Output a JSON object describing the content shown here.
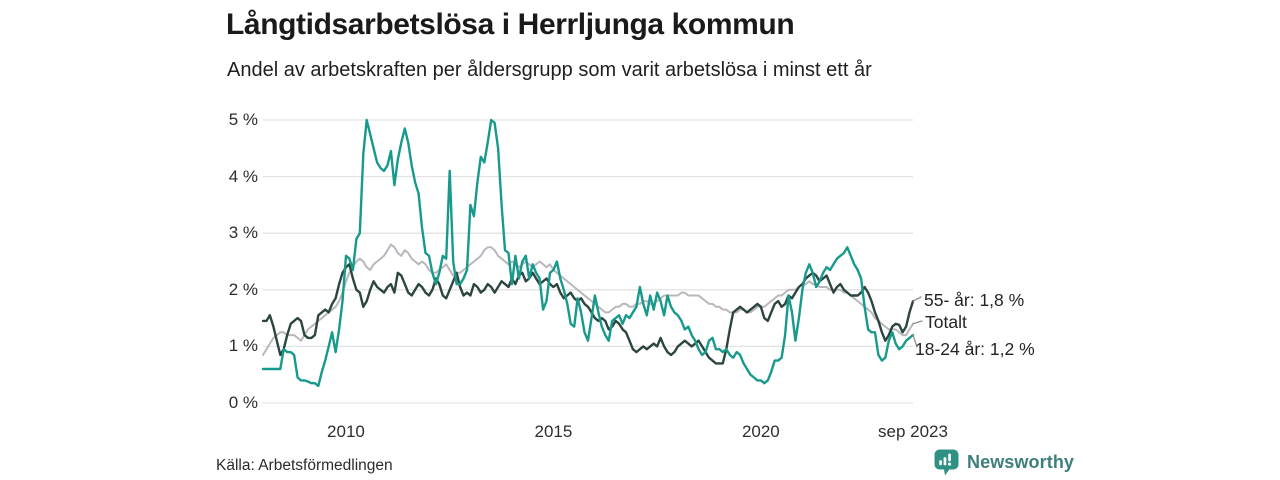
{
  "header": {
    "title": "Långtidsarbetslösa i Herrljunga kommun",
    "subtitle": "Andel av arbetskraften per åldersgrupp som varit arbetslösa i minst ett år"
  },
  "footer": {
    "source": "Källa: Arbetsförmedlingen",
    "brand_name": "Newsworthy"
  },
  "colors": {
    "youth_line": "#179a8c",
    "senior_line": "#2c463f",
    "total_line": "#b9b7bd",
    "grid": "#e3e3e3",
    "leader": "#8f8f8f",
    "brand_teal": "#2f9184",
    "text_dark": "#1a1a1a"
  },
  "chart_data": {
    "type": "line",
    "title": "Långtidsarbetslösa i Herrljunga kommun",
    "subtitle": "Andel av arbetskraften per åldersgrupp som varit arbetslösa i minst ett år",
    "unit": "%",
    "frequency": "monthly",
    "x_start": "2008-01",
    "x_end": "2023-09",
    "ylim": [
      0,
      5
    ],
    "grid": true,
    "legend_position": "end-of-line-labels-right",
    "y_ticks": [
      "0 %",
      "1 %",
      "2 %",
      "3 %",
      "4 %",
      "5 %"
    ],
    "x_ticks": [
      {
        "label": "2010",
        "month_index": 24
      },
      {
        "label": "2015",
        "month_index": 84
      },
      {
        "label": "2020",
        "month_index": 144
      },
      {
        "label": "sep 2023",
        "month_index": 188
      }
    ],
    "series": [
      {
        "name": "Totalt",
        "end_label": "Totalt",
        "color": "#b9b7bd",
        "width": 2,
        "values": [
          0.85,
          0.95,
          1.05,
          1.15,
          1.2,
          1.25,
          1.25,
          1.2,
          1.2,
          1.2,
          1.15,
          1.1,
          1.2,
          1.3,
          1.35,
          1.4,
          1.45,
          1.5,
          1.55,
          1.6,
          1.65,
          1.7,
          1.8,
          1.95,
          2.15,
          2.3,
          2.4,
          2.5,
          2.55,
          2.5,
          2.4,
          2.35,
          2.45,
          2.5,
          2.55,
          2.6,
          2.7,
          2.8,
          2.75,
          2.65,
          2.6,
          2.7,
          2.65,
          2.55,
          2.5,
          2.45,
          2.5,
          2.45,
          2.35,
          2.3,
          2.3,
          2.35,
          2.4,
          2.45,
          2.35,
          2.25,
          2.3,
          2.3,
          2.35,
          2.4,
          2.45,
          2.5,
          2.55,
          2.6,
          2.7,
          2.75,
          2.75,
          2.7,
          2.6,
          2.55,
          2.5,
          2.45,
          2.5,
          2.45,
          2.4,
          2.45,
          2.5,
          2.45,
          2.4,
          2.45,
          2.5,
          2.45,
          2.4,
          2.45,
          2.35,
          2.3,
          2.25,
          2.2,
          2.15,
          2.1,
          2.05,
          2.0,
          1.95,
          1.9,
          1.85,
          1.8,
          1.75,
          1.7,
          1.65,
          1.6,
          1.6,
          1.65,
          1.7,
          1.7,
          1.75,
          1.75,
          1.7,
          1.7,
          1.75,
          1.75,
          1.8,
          1.8,
          1.75,
          1.75,
          1.8,
          1.85,
          1.9,
          1.9,
          1.9,
          1.9,
          1.9,
          1.95,
          1.95,
          1.9,
          1.9,
          1.9,
          1.9,
          1.85,
          1.8,
          1.75,
          1.75,
          1.7,
          1.7,
          1.65,
          1.65,
          1.6,
          1.6,
          1.6,
          1.65,
          1.65,
          1.6,
          1.6,
          1.65,
          1.7,
          1.7,
          1.7,
          1.75,
          1.8,
          1.85,
          1.9,
          1.9,
          1.95,
          2.0,
          2.0,
          2.0,
          2.05,
          2.1,
          2.1,
          2.15,
          2.1,
          2.1,
          2.05,
          2.05,
          2.05,
          2.0,
          2.0,
          2.0,
          2.0,
          1.95,
          1.95,
          1.9,
          1.85,
          1.8,
          1.75,
          1.7,
          1.65,
          1.6,
          1.5,
          1.45,
          1.4,
          1.35,
          1.3,
          1.3,
          1.3,
          1.25,
          1.2,
          1.2,
          1.3,
          1.4
        ]
      },
      {
        "name": "55- år",
        "end_label": "55- år: 1,8 %",
        "color": "#2c463f",
        "width": 2.4,
        "values": [
          1.45,
          1.45,
          1.55,
          1.35,
          1.1,
          0.85,
          0.95,
          1.2,
          1.4,
          1.45,
          1.5,
          1.45,
          1.2,
          1.15,
          1.15,
          1.2,
          1.55,
          1.6,
          1.65,
          1.6,
          1.75,
          1.85,
          2.1,
          2.3,
          2.4,
          2.45,
          2.2,
          2.0,
          1.95,
          1.7,
          1.8,
          2.0,
          2.15,
          2.05,
          2.0,
          1.95,
          2.05,
          2.1,
          1.95,
          2.3,
          2.25,
          2.1,
          1.95,
          1.9,
          2.0,
          2.1,
          2.05,
          1.95,
          1.9,
          2.0,
          2.2,
          2.1,
          1.9,
          1.85,
          2.0,
          2.15,
          2.3,
          2.05,
          1.9,
          1.95,
          1.9,
          2.1,
          2.05,
          1.95,
          2.0,
          2.1,
          2.05,
          1.95,
          2.05,
          2.15,
          2.1,
          2.05,
          2.2,
          2.1,
          2.25,
          2.3,
          2.15,
          2.2,
          2.3,
          2.2,
          2.1,
          2.15,
          2.2,
          2.1,
          2.05,
          2.1,
          1.95,
          1.85,
          1.9,
          1.95,
          1.85,
          1.8,
          1.85,
          1.75,
          1.7,
          1.6,
          1.5,
          1.45,
          1.5,
          1.45,
          1.3,
          1.35,
          1.45,
          1.4,
          1.3,
          1.25,
          1.1,
          0.95,
          0.9,
          0.95,
          1.0,
          0.95,
          1.0,
          1.05,
          1.0,
          1.15,
          1.0,
          0.9,
          0.85,
          0.9,
          1.0,
          1.05,
          1.1,
          1.05,
          1.0,
          1.05,
          1.1,
          1.0,
          0.9,
          0.8,
          0.75,
          0.7,
          0.7,
          0.7,
          0.95,
          1.3,
          1.6,
          1.65,
          1.7,
          1.65,
          1.6,
          1.65,
          1.7,
          1.75,
          1.7,
          1.5,
          1.45,
          1.6,
          1.75,
          1.8,
          1.7,
          1.75,
          1.9,
          1.85,
          1.95,
          2.05,
          2.1,
          2.2,
          2.25,
          2.3,
          2.25,
          2.15,
          2.2,
          2.25,
          2.1,
          1.95,
          2.05,
          2.1,
          2.0,
          1.95,
          1.9,
          1.9,
          1.9,
          1.95,
          2.05,
          1.95,
          1.8,
          1.6,
          1.45,
          1.25,
          1.1,
          1.2,
          1.35,
          1.4,
          1.38,
          1.25,
          1.35,
          1.6,
          1.8
        ]
      },
      {
        "name": "18-24 år",
        "end_label": "18-24 år: 1,2 %",
        "color": "#179a8c",
        "width": 2.4,
        "values": [
          0.6,
          0.6,
          0.6,
          0.6,
          0.6,
          0.6,
          0.95,
          0.9,
          0.9,
          0.85,
          0.45,
          0.4,
          0.4,
          0.38,
          0.35,
          0.35,
          0.3,
          0.55,
          0.75,
          1.0,
          1.25,
          0.9,
          1.3,
          1.8,
          2.6,
          2.55,
          2.35,
          2.9,
          3.0,
          4.4,
          5.0,
          4.75,
          4.5,
          4.25,
          4.15,
          4.1,
          4.2,
          4.45,
          3.85,
          4.3,
          4.6,
          4.85,
          4.6,
          4.2,
          3.9,
          3.7,
          3.1,
          2.65,
          2.6,
          2.3,
          2.1,
          2.3,
          2.6,
          2.55,
          4.1,
          2.5,
          2.1,
          2.1,
          2.2,
          2.35,
          3.5,
          3.3,
          3.9,
          4.35,
          4.25,
          4.6,
          5.0,
          4.95,
          4.5,
          3.5,
          2.7,
          2.65,
          2.1,
          2.6,
          2.2,
          2.5,
          2.6,
          2.2,
          2.45,
          2.3,
          2.2,
          1.65,
          1.8,
          2.3,
          2.35,
          2.5,
          2.2,
          2.0,
          1.75,
          1.4,
          1.35,
          1.85,
          1.6,
          1.25,
          1.1,
          1.5,
          1.9,
          1.6,
          1.35,
          1.2,
          1.1,
          1.45,
          1.5,
          1.55,
          1.4,
          1.55,
          1.5,
          1.6,
          1.7,
          2.05,
          1.75,
          1.55,
          1.9,
          1.65,
          1.95,
          1.8,
          1.55,
          1.9,
          1.7,
          1.6,
          1.55,
          1.45,
          1.3,
          1.35,
          1.2,
          1.1,
          0.95,
          0.85,
          0.9,
          1.1,
          1.15,
          0.95,
          0.95,
          0.9,
          0.95,
          0.85,
          0.8,
          0.9,
          0.85,
          0.7,
          0.6,
          0.5,
          0.45,
          0.4,
          0.4,
          0.35,
          0.4,
          0.55,
          0.75,
          0.75,
          0.8,
          1.2,
          1.9,
          1.6,
          1.1,
          1.5,
          2.0,
          2.3,
          2.45,
          2.3,
          2.05,
          2.15,
          2.3,
          2.4,
          2.35,
          2.45,
          2.55,
          2.6,
          2.65,
          2.75,
          2.6,
          2.45,
          2.35,
          2.2,
          1.7,
          1.3,
          1.25,
          1.25,
          0.85,
          0.75,
          0.8,
          1.1,
          1.25,
          1.05,
          0.95,
          1.0,
          1.1,
          1.15,
          1.2
        ]
      }
    ]
  }
}
